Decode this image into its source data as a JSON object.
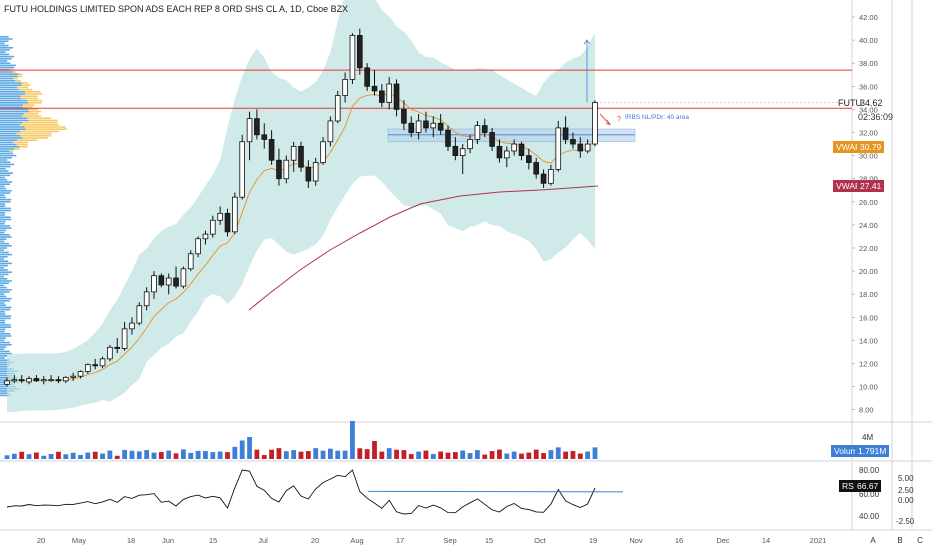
{
  "header": {
    "title": "FUTU HOLDINGS LIMITED SPON ADS EACH REP 8 ORD SHS CL A, 1D, Cboe BZX"
  },
  "colors": {
    "up": "#ffffff",
    "down": "#222222",
    "outline": "#111111",
    "band": "#bfe3e1",
    "resistance": "#e53935",
    "vwap_short": "#e6951e",
    "vwap_long": "#b0334b",
    "vol_up": "#3d7fd6",
    "vol_down": "#c31f28",
    "rsi": "#111111",
    "rsi_trend": "#3d7fd6",
    "zone": "#bcd4ee",
    "profile_blue": "#3f9ae0",
    "profile_yellow": "#f5c14a"
  },
  "price_axis": {
    "ticks": [
      "42.00",
      "40.00",
      "38.00",
      "36.00",
      "34.00",
      "32.00",
      "30.00",
      "28.00",
      "26.00",
      "24.00",
      "22.00",
      "20.00",
      "18.00",
      "16.00",
      "14.00",
      "12.00",
      "10.00",
      "8.00"
    ]
  },
  "time_axis": {
    "ticks": [
      "20",
      "May",
      "18",
      "Jun",
      "15",
      "Jul",
      "20",
      "Aug",
      "17",
      "Sep",
      "15",
      "Oct",
      "19",
      "Nov",
      "16",
      "Dec",
      "14",
      "2021"
    ]
  },
  "labels": {
    "futu": "FUTU",
    "futu_price": "34.62",
    "countdown": "02:36:09",
    "vwap1_label": "VWAP",
    "vwap1_value": "30.79",
    "vwap2_label": "VWAP",
    "vwap2_value": "27.41",
    "annotation": "IRBS NL/PDr: 40 area",
    "volume_label": "Volume",
    "volume_value": "1.791M",
    "rsi_label": "RSI",
    "rsi_value": "66.67",
    "vol_tick": "4M"
  },
  "rsi_axis": {
    "left_ticks": [
      "80.00",
      "60.00",
      "40.00"
    ],
    "right_ticks": [
      "5.00",
      "2.50",
      "0.00",
      "-2.50"
    ]
  },
  "bottom_buttons": [
    "A",
    "B",
    "C"
  ],
  "chart_data": {
    "type": "candlestick",
    "series": [
      {
        "x": "Apr 16",
        "o": 10.2,
        "h": 10.8,
        "l": 10.0,
        "c": 10.5
      },
      {
        "x": "Apr 18",
        "o": 10.5,
        "h": 11.0,
        "l": 10.3,
        "c": 10.6
      },
      {
        "x": "Apr 20",
        "o": 10.6,
        "h": 11.0,
        "l": 10.3,
        "c": 10.5
      },
      {
        "x": "Apr 22",
        "o": 10.4,
        "h": 10.9,
        "l": 10.2,
        "c": 10.7
      },
      {
        "x": "Apr 24",
        "o": 10.7,
        "h": 11.0,
        "l": 10.4,
        "c": 10.5
      },
      {
        "x": "Apr 27",
        "o": 10.5,
        "h": 10.9,
        "l": 10.2,
        "c": 10.6
      },
      {
        "x": "Apr 29",
        "o": 10.6,
        "h": 11.0,
        "l": 10.4,
        "c": 10.6
      },
      {
        "x": "May 1",
        "o": 10.6,
        "h": 10.9,
        "l": 10.3,
        "c": 10.5
      },
      {
        "x": "May 4",
        "o": 10.5,
        "h": 10.9,
        "l": 10.3,
        "c": 10.8
      },
      {
        "x": "May 6",
        "o": 10.8,
        "h": 11.2,
        "l": 10.5,
        "c": 10.9
      },
      {
        "x": "May 8",
        "o": 10.9,
        "h": 11.4,
        "l": 10.7,
        "c": 11.3
      },
      {
        "x": "May 11",
        "o": 11.3,
        "h": 12.0,
        "l": 11.1,
        "c": 11.9
      },
      {
        "x": "May 13",
        "o": 11.9,
        "h": 12.4,
        "l": 11.5,
        "c": 11.8
      },
      {
        "x": "May 15",
        "o": 11.8,
        "h": 12.6,
        "l": 11.6,
        "c": 12.4
      },
      {
        "x": "May 18",
        "o": 12.4,
        "h": 13.6,
        "l": 12.2,
        "c": 13.4
      },
      {
        "x": "May 20",
        "o": 13.4,
        "h": 14.2,
        "l": 12.9,
        "c": 13.3
      },
      {
        "x": "May 22",
        "o": 13.3,
        "h": 15.6,
        "l": 13.1,
        "c": 15.0
      },
      {
        "x": "May 26",
        "o": 15.0,
        "h": 16.0,
        "l": 14.5,
        "c": 15.5
      },
      {
        "x": "May 28",
        "o": 15.5,
        "h": 17.3,
        "l": 15.3,
        "c": 17.0
      },
      {
        "x": "Jun 1",
        "o": 17.0,
        "h": 18.6,
        "l": 16.6,
        "c": 18.2
      },
      {
        "x": "Jun 3",
        "o": 18.2,
        "h": 20.0,
        "l": 17.6,
        "c": 19.6
      },
      {
        "x": "Jun 5",
        "o": 19.6,
        "h": 19.8,
        "l": 18.6,
        "c": 18.8
      },
      {
        "x": "Jun 8",
        "o": 18.8,
        "h": 19.8,
        "l": 18.0,
        "c": 19.4
      },
      {
        "x": "Jun 10",
        "o": 19.4,
        "h": 20.4,
        "l": 18.5,
        "c": 18.7
      },
      {
        "x": "Jun 12",
        "o": 18.7,
        "h": 20.4,
        "l": 18.5,
        "c": 20.2
      },
      {
        "x": "Jun 15",
        "o": 20.2,
        "h": 21.8,
        "l": 20.0,
        "c": 21.5
      },
      {
        "x": "Jun 17",
        "o": 21.5,
        "h": 23.0,
        "l": 21.2,
        "c": 22.8
      },
      {
        "x": "Jun 19",
        "o": 22.8,
        "h": 23.5,
        "l": 22.3,
        "c": 23.2
      },
      {
        "x": "Jun 22",
        "o": 23.2,
        "h": 24.8,
        "l": 22.9,
        "c": 24.4
      },
      {
        "x": "Jun 24",
        "o": 24.4,
        "h": 25.6,
        "l": 24.0,
        "c": 25.0
      },
      {
        "x": "Jun 26",
        "o": 25.0,
        "h": 25.4,
        "l": 23.0,
        "c": 23.4
      },
      {
        "x": "Jun 29",
        "o": 23.4,
        "h": 26.8,
        "l": 23.2,
        "c": 26.4
      },
      {
        "x": "Jul 1",
        "o": 26.4,
        "h": 31.8,
        "l": 26.2,
        "c": 31.2
      },
      {
        "x": "Jul 3",
        "o": 31.2,
        "h": 33.8,
        "l": 29.6,
        "c": 33.2
      },
      {
        "x": "Jul 6",
        "o": 33.2,
        "h": 34.0,
        "l": 31.4,
        "c": 31.8
      },
      {
        "x": "Jul 8",
        "o": 31.8,
        "h": 32.8,
        "l": 30.6,
        "c": 31.4
      },
      {
        "x": "Jul 10",
        "o": 31.4,
        "h": 32.2,
        "l": 29.2,
        "c": 29.6
      },
      {
        "x": "Jul 13",
        "o": 29.6,
        "h": 30.6,
        "l": 27.4,
        "c": 28.0
      },
      {
        "x": "Jul 15",
        "o": 28.0,
        "h": 30.0,
        "l": 27.6,
        "c": 29.6
      },
      {
        "x": "Jul 17",
        "o": 29.6,
        "h": 31.2,
        "l": 28.6,
        "c": 30.8
      },
      {
        "x": "Jul 20",
        "o": 30.8,
        "h": 31.2,
        "l": 28.6,
        "c": 29.0
      },
      {
        "x": "Jul 22",
        "o": 29.0,
        "h": 29.6,
        "l": 27.2,
        "c": 27.8
      },
      {
        "x": "Jul 24",
        "o": 27.8,
        "h": 29.8,
        "l": 27.4,
        "c": 29.4
      },
      {
        "x": "Jul 27",
        "o": 29.4,
        "h": 31.6,
        "l": 29.2,
        "c": 31.2
      },
      {
        "x": "Jul 29",
        "o": 31.2,
        "h": 33.4,
        "l": 30.8,
        "c": 33.0
      },
      {
        "x": "Jul 31",
        "o": 33.0,
        "h": 35.6,
        "l": 32.8,
        "c": 35.2
      },
      {
        "x": "Aug 3",
        "o": 35.2,
        "h": 37.2,
        "l": 34.6,
        "c": 36.6
      },
      {
        "x": "Aug 5",
        "o": 36.6,
        "h": 40.6,
        "l": 36.2,
        "c": 40.4
      },
      {
        "x": "Aug 7",
        "o": 40.4,
        "h": 41.0,
        "l": 37.0,
        "c": 37.6
      },
      {
        "x": "Aug 10",
        "o": 37.6,
        "h": 38.0,
        "l": 35.6,
        "c": 36.0
      },
      {
        "x": "Aug 12",
        "o": 36.0,
        "h": 37.4,
        "l": 35.2,
        "c": 35.6
      },
      {
        "x": "Aug 14",
        "o": 35.6,
        "h": 36.2,
        "l": 34.2,
        "c": 34.6
      },
      {
        "x": "Aug 17",
        "o": 34.6,
        "h": 36.8,
        "l": 34.0,
        "c": 36.2
      },
      {
        "x": "Aug 19",
        "o": 36.2,
        "h": 36.6,
        "l": 33.4,
        "c": 34.0
      },
      {
        "x": "Aug 21",
        "o": 34.0,
        "h": 34.8,
        "l": 32.2,
        "c": 32.8
      },
      {
        "x": "Aug 24",
        "o": 32.8,
        "h": 33.4,
        "l": 31.6,
        "c": 32.0
      },
      {
        "x": "Aug 26",
        "o": 32.0,
        "h": 33.6,
        "l": 31.4,
        "c": 33.0
      },
      {
        "x": "Aug 28",
        "o": 33.0,
        "h": 33.8,
        "l": 32.0,
        "c": 32.4
      },
      {
        "x": "Aug 31",
        "o": 32.4,
        "h": 33.4,
        "l": 31.6,
        "c": 32.8
      },
      {
        "x": "Sep 2",
        "o": 32.8,
        "h": 33.6,
        "l": 31.8,
        "c": 32.2
      },
      {
        "x": "Sep 4",
        "o": 32.2,
        "h": 32.6,
        "l": 30.4,
        "c": 30.8
      },
      {
        "x": "Sep 8",
        "o": 30.8,
        "h": 31.6,
        "l": 29.6,
        "c": 30.0
      },
      {
        "x": "Sep 10",
        "o": 30.0,
        "h": 31.0,
        "l": 28.4,
        "c": 30.6
      },
      {
        "x": "Sep 12",
        "o": 30.6,
        "h": 31.8,
        "l": 30.2,
        "c": 31.4
      },
      {
        "x": "Sep 15",
        "o": 31.4,
        "h": 33.0,
        "l": 31.0,
        "c": 32.6
      },
      {
        "x": "Sep 17",
        "o": 32.6,
        "h": 33.2,
        "l": 31.6,
        "c": 32.0
      },
      {
        "x": "Sep 19",
        "o": 32.0,
        "h": 32.4,
        "l": 30.4,
        "c": 30.8
      },
      {
        "x": "Sep 22",
        "o": 30.8,
        "h": 31.4,
        "l": 29.4,
        "c": 29.8
      },
      {
        "x": "Sep 24",
        "o": 29.8,
        "h": 30.8,
        "l": 29.0,
        "c": 30.4
      },
      {
        "x": "Sep 26",
        "o": 30.4,
        "h": 31.4,
        "l": 30.0,
        "c": 31.0
      },
      {
        "x": "Sep 29",
        "o": 31.0,
        "h": 31.2,
        "l": 29.6,
        "c": 30.0
      },
      {
        "x": "Oct 1",
        "o": 30.0,
        "h": 30.6,
        "l": 28.8,
        "c": 29.4
      },
      {
        "x": "Oct 3",
        "o": 29.4,
        "h": 29.8,
        "l": 28.0,
        "c": 28.4
      },
      {
        "x": "Oct 6",
        "o": 28.4,
        "h": 28.8,
        "l": 27.2,
        "c": 27.6
      },
      {
        "x": "Oct 8",
        "o": 27.6,
        "h": 29.2,
        "l": 27.4,
        "c": 28.8
      },
      {
        "x": "Oct 10",
        "o": 28.8,
        "h": 33.0,
        "l": 28.6,
        "c": 32.4
      },
      {
        "x": "Oct 13",
        "o": 32.4,
        "h": 33.4,
        "l": 31.0,
        "c": 31.4
      },
      {
        "x": "Oct 15",
        "o": 31.4,
        "h": 32.0,
        "l": 30.6,
        "c": 31.0
      },
      {
        "x": "Oct 17",
        "o": 31.0,
        "h": 31.6,
        "l": 29.8,
        "c": 30.4
      },
      {
        "x": "Oct 19",
        "o": 30.4,
        "h": 31.4,
        "l": 30.2,
        "c": 31.0
      },
      {
        "x": "Oct 20",
        "o": 31.0,
        "h": 34.8,
        "l": 30.8,
        "c": 34.6
      }
    ],
    "ylim": [
      7,
      43
    ]
  }
}
